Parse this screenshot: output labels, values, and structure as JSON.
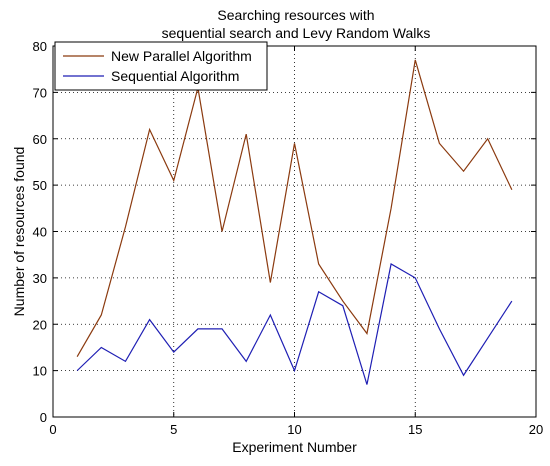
{
  "chart_data": {
    "type": "line",
    "title_line1": "Searching resources with",
    "title_line2": "sequential search and Levy Random Walks",
    "xlabel": "Experiment Number",
    "ylabel": "Number of resources found",
    "xlim": [
      0,
      20
    ],
    "ylim": [
      0,
      80
    ],
    "xticks": [
      0,
      5,
      10,
      15,
      20
    ],
    "yticks": [
      0,
      10,
      20,
      30,
      40,
      50,
      60,
      70,
      80
    ],
    "grid": true,
    "legend_position": "top-left",
    "x": [
      1,
      2,
      3,
      4,
      5,
      6,
      7,
      8,
      9,
      10,
      11,
      12,
      13,
      14,
      15,
      16,
      17,
      18,
      19
    ],
    "series": [
      {
        "name": "New Parallel Algorithm",
        "color": "#8B3A0F",
        "values": [
          13,
          22,
          41,
          62,
          51,
          71,
          40,
          61,
          29,
          59,
          33,
          25,
          18,
          45,
          77,
          59,
          53,
          60,
          49
        ]
      },
      {
        "name": "Sequential Algorithm",
        "color": "#1F1FB4",
        "values": [
          10,
          15,
          12,
          21,
          14,
          19,
          19,
          12,
          22,
          10,
          27,
          24,
          7,
          33,
          30,
          19,
          9,
          17,
          25
        ]
      }
    ]
  }
}
